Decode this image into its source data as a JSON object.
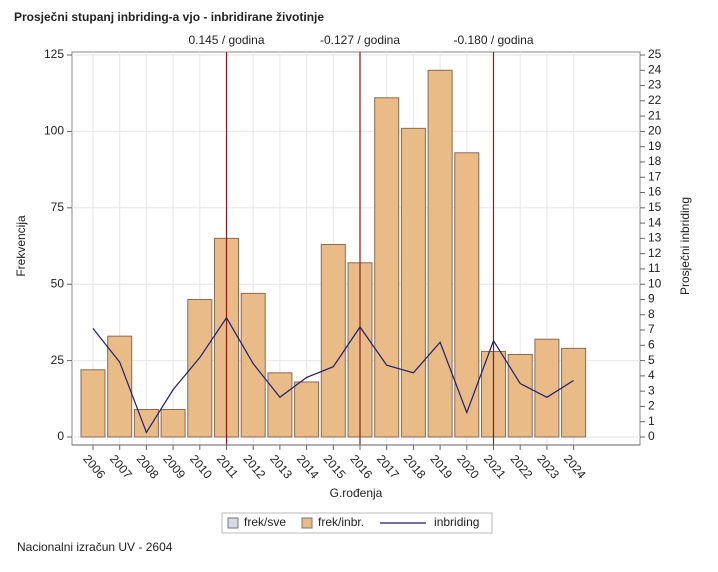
{
  "chart_data": {
    "type": "bar",
    "title": "Prosječni stupanj inbriding-a vjo - inbridirane životinje",
    "x_label": "G.rođenja",
    "y_label": "Frekvencija",
    "y2_label": "Prosječni inbriding",
    "footer": "Nacionalni izračun UV - 2604",
    "categories": [
      "2006",
      "2007",
      "2008",
      "2009",
      "2010",
      "2011",
      "2012",
      "2013",
      "2014",
      "2015",
      "2016",
      "2017",
      "2018",
      "2019",
      "2020",
      "2021",
      "2022",
      "2023",
      "2024"
    ],
    "series": [
      {
        "name": "frek/inbr.",
        "type": "bar",
        "color": "#e9bb86",
        "values": [
          22,
          33,
          9,
          9,
          45,
          65,
          47,
          21,
          18,
          63,
          57,
          111,
          101,
          120,
          93,
          28,
          27,
          32,
          29
        ]
      },
      {
        "name": "inbriding",
        "type": "line",
        "axis": "y2",
        "color": "#1f1f6e",
        "values": [
          7.1,
          4.9,
          0.3,
          3.1,
          5.2,
          7.8,
          4.8,
          2.6,
          3.9,
          4.6,
          7.2,
          4.7,
          4.2,
          6.2,
          1.6,
          6.3,
          3.5,
          2.6,
          3.7
        ]
      }
    ],
    "legend_extra": [
      {
        "name": "frek/sve",
        "color": "#d9d9e3"
      }
    ],
    "annotations": [
      {
        "x": "2011",
        "label": "0.145 / godina"
      },
      {
        "x": "2016",
        "label": "-0.127 / godina"
      },
      {
        "x": "2021",
        "label": "-0.180 / godina"
      }
    ],
    "annotation_color": "#8b1a1a",
    "ylim": [
      0,
      125
    ],
    "yticks": [
      0,
      25,
      50,
      75,
      100,
      125
    ],
    "y2lim": [
      0,
      25
    ],
    "y2ticks": [
      0,
      1,
      2,
      3,
      4,
      5,
      6,
      7,
      8,
      9,
      10,
      11,
      12,
      13,
      14,
      15,
      16,
      17,
      18,
      19,
      20,
      21,
      22,
      23,
      24,
      25
    ],
    "grid": true
  }
}
